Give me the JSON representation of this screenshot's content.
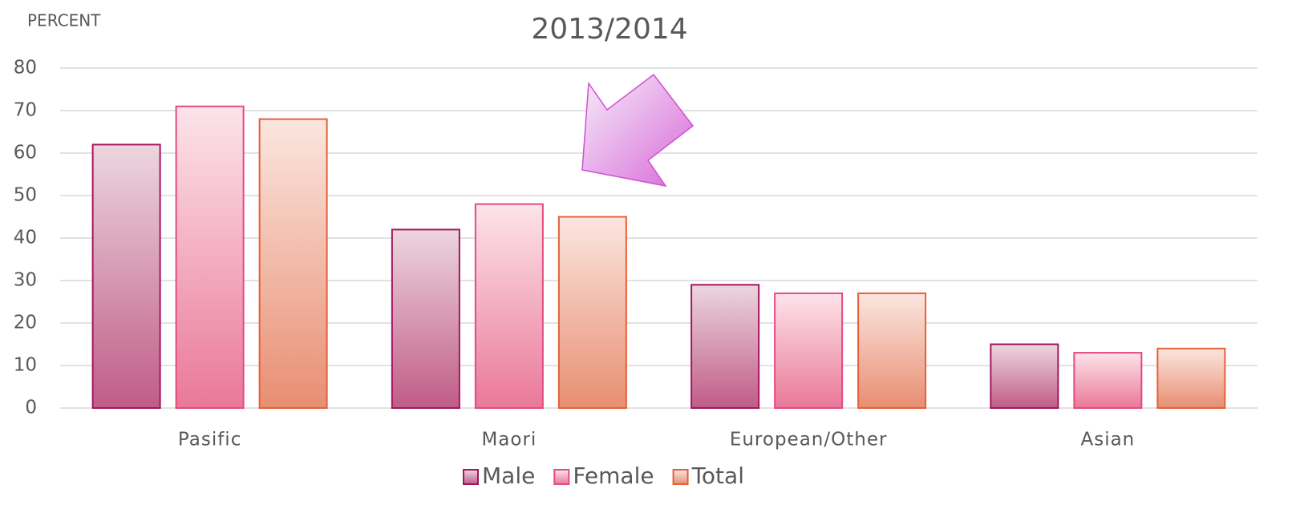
{
  "chart_data": {
    "type": "bar",
    "title": "2013/2014",
    "y_label": "PERCENT",
    "categories": [
      "Pasific",
      "Maori",
      "European/Other",
      "Asian"
    ],
    "series": [
      {
        "name": "Male",
        "color": "#a3155f",
        "values": [
          62,
          42,
          29,
          15
        ]
      },
      {
        "name": "Female",
        "color": "#e44a83",
        "values": [
          71,
          48,
          27,
          13
        ]
      },
      {
        "name": "Total",
        "color": "#e5603a",
        "values": [
          68,
          45,
          27,
          14
        ]
      }
    ],
    "ylim": [
      0,
      80
    ],
    "yticks": [
      0,
      10,
      20,
      30,
      40,
      50,
      60,
      70,
      80
    ],
    "grid": true,
    "legend": "bottom"
  }
}
